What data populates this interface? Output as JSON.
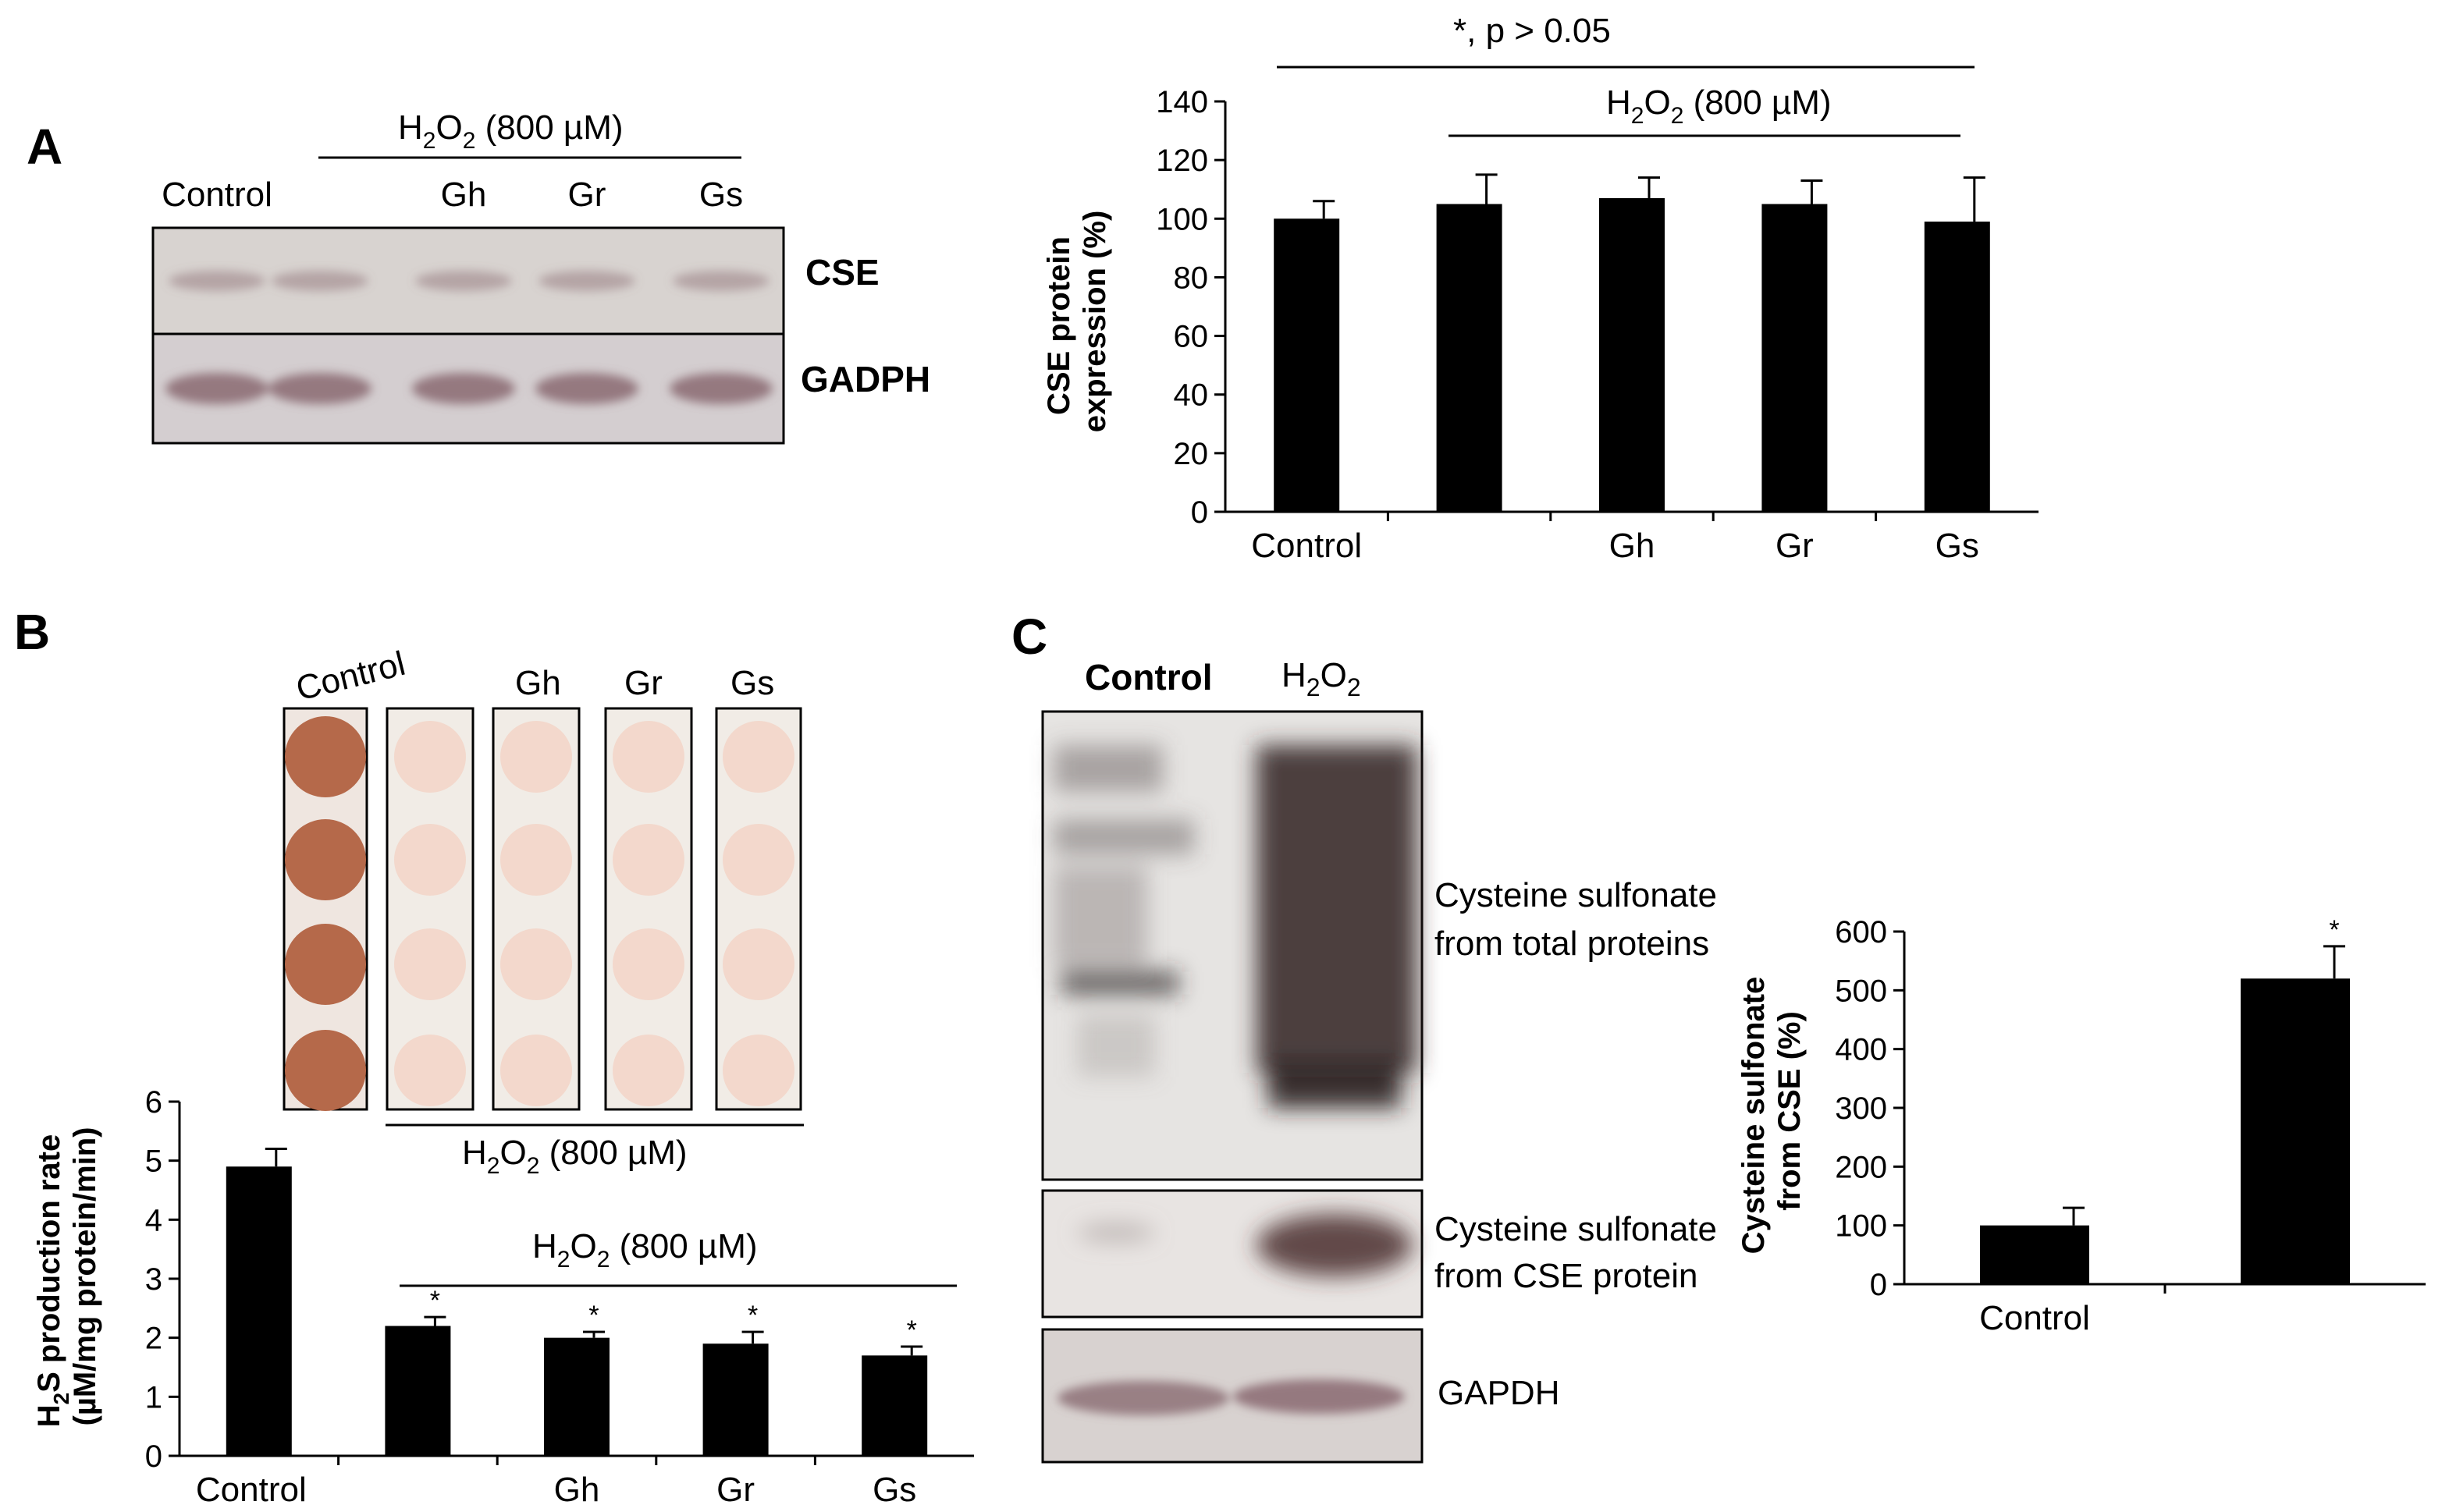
{
  "panels": {
    "a": "A",
    "b": "B",
    "c": "C"
  },
  "treatment": {
    "base": "H",
    "sub": "2",
    "mid": "O",
    "rest": " (800 µM)"
  },
  "panel_a": {
    "blot": {
      "lanes": [
        "Control",
        "",
        "Gh",
        "Gr",
        "Gs"
      ],
      "band_labels": [
        "CSE",
        "GADPH"
      ]
    },
    "significance": "*, p > 0.05",
    "chart_data": {
      "type": "bar",
      "categories": [
        "Control",
        "",
        "Gh",
        "Gr",
        "Gs"
      ],
      "values": [
        100,
        105,
        107,
        105,
        99
      ],
      "errors": [
        6,
        10,
        7,
        8,
        15
      ],
      "ylabel_lines": [
        "CSE protein",
        "expression (%)"
      ],
      "ylim": [
        0,
        140
      ],
      "yticks": [
        0,
        20,
        40,
        60,
        80,
        100,
        120,
        140
      ],
      "grid": false
    }
  },
  "panel_b": {
    "strip_labels": [
      "Control",
      "Gh",
      "Gr",
      "Gs"
    ],
    "chart_data": {
      "type": "bar",
      "categories": [
        "Control",
        "",
        "Gh",
        "Gr",
        "Gs"
      ],
      "values": [
        4.9,
        2.2,
        2.0,
        1.9,
        1.7
      ],
      "errors": [
        0.3,
        0.15,
        0.1,
        0.2,
        0.15
      ],
      "significance": [
        "",
        "*",
        "*",
        "*",
        "*"
      ],
      "ylim": [
        0,
        6
      ],
      "yticks": [
        0,
        1,
        2,
        3,
        4,
        5,
        6
      ],
      "grid": false
    }
  },
  "panel_c": {
    "blot": {
      "lanes": [
        "Control"
      ],
      "band_labels": [
        [
          "Cysteine sulfonate",
          "from total proteins"
        ],
        [
          "Cysteine sulfonate",
          "from CSE protein"
        ],
        "GAPDH"
      ]
    },
    "chart_data": {
      "type": "bar",
      "categories": [
        "Control",
        ""
      ],
      "values": [
        100,
        520
      ],
      "errors": [
        30,
        55
      ],
      "significance": [
        "",
        "*"
      ],
      "ylabel_lines": [
        "Cysteine sulfonate",
        "from CSE (%)"
      ],
      "ylim": [
        0,
        600
      ],
      "yticks": [
        0,
        100,
        200,
        300,
        400,
        500,
        600
      ],
      "grid": false
    }
  },
  "colors": {
    "bar": "#000000",
    "blot_bg": "#d6d1ce",
    "band": "#8a6a72",
    "spot_dark": "#b5694a",
    "spot_light": "#f3d6c9"
  }
}
